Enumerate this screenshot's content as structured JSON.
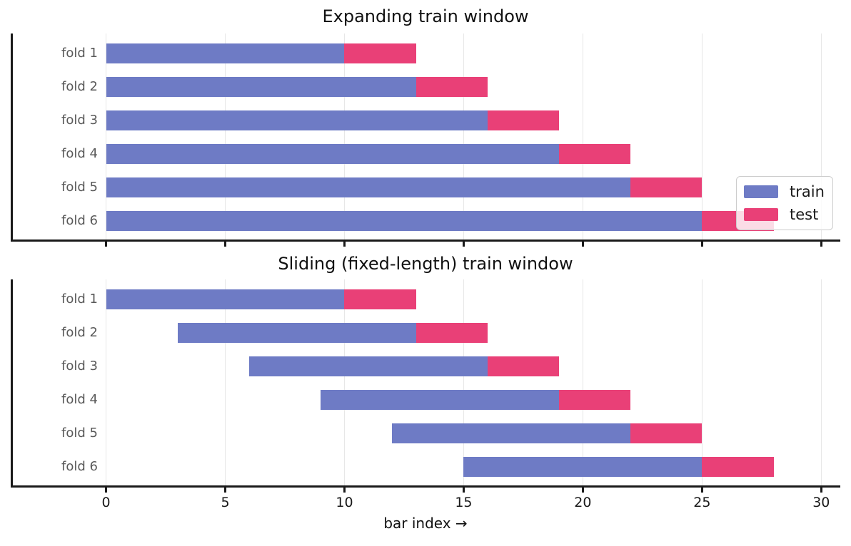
{
  "colors": {
    "train": "#6e7bc5",
    "test": "#e94077",
    "grid": "#e7e7e7",
    "spine": "#1a1a1a",
    "fold_label": "#595959",
    "tick_label": "#1a1a1a",
    "title": "#111111",
    "legend_border": "#cccccc",
    "background": "#ffffff"
  },
  "chart_data": [
    {
      "type": "bar",
      "orientation": "horizontal",
      "title": "Expanding train window",
      "categories": [
        "fold 1",
        "fold 2",
        "fold 3",
        "fold 4",
        "fold 5",
        "fold 6"
      ],
      "series": [
        {
          "name": "train",
          "color": "#6e7bc5",
          "starts": [
            0,
            0,
            0,
            0,
            0,
            0
          ],
          "ends": [
            10,
            13,
            16,
            19,
            22,
            25
          ]
        },
        {
          "name": "test",
          "color": "#e94077",
          "starts": [
            10,
            13,
            16,
            19,
            22,
            25
          ],
          "ends": [
            13,
            16,
            19,
            22,
            25,
            28
          ]
        }
      ],
      "xlim": [
        -4,
        30.8
      ],
      "xticks": [
        0,
        5,
        10,
        15,
        20,
        25,
        30
      ],
      "x_tick_labels_visible": false,
      "grid": true,
      "legend": {
        "visible": true,
        "location": "center right",
        "labels": [
          "train",
          "test"
        ]
      }
    },
    {
      "type": "bar",
      "orientation": "horizontal",
      "title": "Sliding (fixed-length) train window",
      "categories": [
        "fold 1",
        "fold 2",
        "fold 3",
        "fold 4",
        "fold 5",
        "fold 6"
      ],
      "series": [
        {
          "name": "train",
          "color": "#6e7bc5",
          "starts": [
            0,
            3,
            6,
            9,
            12,
            15
          ],
          "ends": [
            10,
            13,
            16,
            19,
            22,
            25
          ]
        },
        {
          "name": "test",
          "color": "#e94077",
          "starts": [
            10,
            13,
            16,
            19,
            22,
            25
          ],
          "ends": [
            13,
            16,
            19,
            22,
            25,
            28
          ]
        }
      ],
      "xlim": [
        -4,
        30.8
      ],
      "xticks": [
        0,
        5,
        10,
        15,
        20,
        25,
        30
      ],
      "x_tick_labels_visible": true,
      "xlabel": "bar index →",
      "grid": true,
      "legend": {
        "visible": false
      }
    }
  ]
}
